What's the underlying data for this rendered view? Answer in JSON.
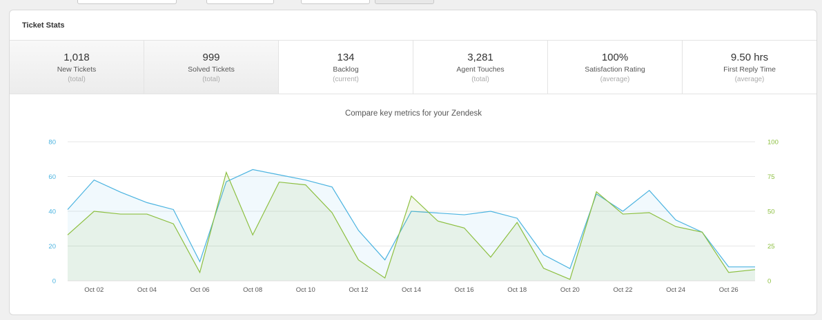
{
  "panel": {
    "title": "Ticket Stats"
  },
  "stats": [
    {
      "value": "1,018",
      "label": "New Tickets",
      "sub": "(total)",
      "active": true
    },
    {
      "value": "999",
      "label": "Solved Tickets",
      "sub": "(total)",
      "active": true
    },
    {
      "value": "134",
      "label": "Backlog",
      "sub": "(current)",
      "active": false
    },
    {
      "value": "3,281",
      "label": "Agent Touches",
      "sub": "(total)",
      "active": false
    },
    {
      "value": "100%",
      "label": "Satisfaction Rating",
      "sub": "(average)",
      "active": false
    },
    {
      "value": "9.50 hrs",
      "label": "First Reply Time",
      "sub": "(average)",
      "active": false
    }
  ],
  "colors": {
    "left_series": "#4ab3e0",
    "right_series": "#8cbf3f",
    "grid": "#e6e6e6"
  },
  "chart_data": {
    "type": "line",
    "title": "Compare key metrics for your Zendesk",
    "x": [
      "Oct 01",
      "Oct 02",
      "Oct 03",
      "Oct 04",
      "Oct 05",
      "Oct 06",
      "Oct 07",
      "Oct 08",
      "Oct 09",
      "Oct 10",
      "Oct 11",
      "Oct 12",
      "Oct 13",
      "Oct 14",
      "Oct 15",
      "Oct 16",
      "Oct 17",
      "Oct 18",
      "Oct 19",
      "Oct 20",
      "Oct 21",
      "Oct 22",
      "Oct 23",
      "Oct 24",
      "Oct 25",
      "Oct 26",
      "Oct 27"
    ],
    "x_tick_labels": [
      "Oct 02",
      "Oct 04",
      "Oct 06",
      "Oct 08",
      "Oct 10",
      "Oct 12",
      "Oct 14",
      "Oct 16",
      "Oct 18",
      "Oct 20",
      "Oct 22",
      "Oct 24",
      "Oct 26"
    ],
    "y_left": {
      "ticks": [
        0,
        20,
        40,
        60,
        80
      ],
      "ylim": [
        0,
        80
      ]
    },
    "y_right": {
      "ticks": [
        0,
        25,
        50,
        75,
        100
      ],
      "ylim": [
        0,
        100
      ]
    },
    "series": [
      {
        "axis": "left",
        "values": [
          41,
          58,
          51,
          45,
          41,
          11,
          57,
          64,
          61,
          58,
          54,
          29,
          12,
          40,
          39,
          38,
          40,
          36,
          15,
          7,
          50,
          40,
          52,
          35,
          28,
          8,
          8
        ]
      },
      {
        "axis": "right",
        "values": [
          33,
          50,
          48,
          48,
          41,
          6,
          78,
          33,
          71,
          69,
          49,
          15,
          2,
          61,
          43,
          38,
          17,
          42,
          9,
          1,
          64,
          48,
          49,
          39,
          35,
          6,
          8
        ]
      }
    ],
    "grid": true,
    "legend": "none"
  }
}
